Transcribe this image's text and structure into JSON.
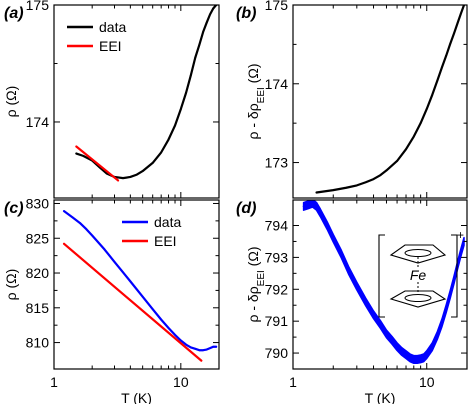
{
  "colors": {
    "data": "#0000ff",
    "data_black": "#000000",
    "eei": "#ff0000"
  },
  "chart_data": [
    {
      "id": "a",
      "panel_label": "(a)",
      "type": "line",
      "xscale": "log",
      "xlim": [
        1,
        20
      ],
      "ylim": [
        173.35,
        175
      ],
      "ylabel": "ρ (Ω)",
      "ylabel_parts": [
        {
          "text": "ρ (Ω)"
        }
      ],
      "yticks": [
        174,
        175
      ],
      "xticks": [
        1,
        10
      ],
      "xtick_labels": [],
      "legend": {
        "placement": "top-left"
      },
      "series": [
        {
          "name": "data",
          "color": "#000000",
          "kind": "line",
          "x": [
            1.5,
            1.7,
            2.0,
            2.3,
            2.6,
            3.0,
            3.5,
            4.0,
            4.5,
            5.0,
            6.0,
            7.0,
            8.0,
            9.0,
            10.0,
            11.0,
            12.0,
            13.0,
            14.0,
            15.0,
            16.0,
            17.0,
            18.0,
            19.0
          ],
          "y": [
            173.73,
            173.71,
            173.67,
            173.61,
            173.56,
            173.53,
            173.52,
            173.53,
            173.55,
            173.58,
            173.65,
            173.74,
            173.85,
            173.97,
            174.11,
            174.25,
            174.4,
            174.55,
            174.66,
            174.77,
            174.85,
            174.92,
            174.97,
            175.0
          ]
        },
        {
          "name": "EEI",
          "color": "#ff0000",
          "kind": "line",
          "x": [
            1.5,
            3.2
          ],
          "y": [
            173.79,
            173.5
          ]
        }
      ]
    },
    {
      "id": "b",
      "panel_label": "(b)",
      "type": "line",
      "xscale": "log",
      "xlim": [
        1,
        20
      ],
      "ylim": [
        172.55,
        175
      ],
      "ylabel": "ρ - δρEEI (Ω)",
      "ylabel_parts": [
        {
          "text": "ρ - δρ"
        },
        {
          "text": "EEI",
          "sub": true
        },
        {
          "text": " (Ω)"
        }
      ],
      "yticks": [
        173,
        174,
        175
      ],
      "xticks": [
        1,
        10
      ],
      "xtick_labels": [],
      "series": [
        {
          "name": "",
          "color": "#000000",
          "kind": "line",
          "x": [
            1.5,
            2.0,
            2.5,
            3.0,
            3.5,
            4.0,
            4.5,
            5.0,
            6.0,
            7.0,
            8.0,
            9.0,
            10.0,
            11.0,
            12.0,
            13.0,
            14.0,
            15.0,
            16.0,
            17.0,
            18.0,
            19.0
          ],
          "y": [
            172.62,
            172.65,
            172.68,
            172.71,
            172.75,
            172.79,
            172.84,
            172.9,
            173.02,
            173.17,
            173.33,
            173.5,
            173.68,
            173.86,
            174.04,
            174.21,
            174.36,
            174.51,
            174.64,
            174.77,
            174.89,
            175.0
          ]
        }
      ]
    },
    {
      "id": "c",
      "panel_label": "(c)",
      "type": "line",
      "xscale": "log",
      "xlim": [
        1,
        20
      ],
      "ylim": [
        806.2,
        830.5
      ],
      "ylabel": "ρ (Ω)",
      "ylabel_parts": [
        {
          "text": "ρ (Ω)"
        }
      ],
      "yticks": [
        810,
        815,
        820,
        825,
        830
      ],
      "xticks": [
        1,
        10
      ],
      "xtick_labels": [
        "1",
        "10"
      ],
      "xlabel": "T (K)",
      "legend": {
        "placement": "top-right"
      },
      "series": [
        {
          "name": "data",
          "color": "#0000ff",
          "kind": "line",
          "x": [
            1.2,
            1.4,
            1.6,
            1.8,
            2.0,
            2.5,
            3.0,
            3.5,
            4.0,
            5.0,
            6.0,
            7.0,
            8.0,
            9.0,
            10.0,
            11.0,
            12.0,
            13.0,
            14.0,
            15.0,
            16.0,
            17.0,
            18.0,
            19.0
          ],
          "y": [
            828.9,
            828.0,
            827.2,
            826.3,
            825.4,
            823.4,
            821.6,
            820.1,
            818.8,
            816.6,
            814.8,
            813.3,
            812.1,
            811.1,
            810.3,
            809.7,
            809.3,
            809.1,
            808.9,
            808.9,
            809.0,
            809.2,
            809.4,
            809.4
          ]
        },
        {
          "name": "EEI",
          "color": "#ff0000",
          "kind": "line",
          "x": [
            1.2,
            14.5
          ],
          "y": [
            824.2,
            807.4
          ]
        }
      ]
    },
    {
      "id": "d",
      "panel_label": "(d)",
      "type": "line",
      "xscale": "log",
      "xlim": [
        1,
        20
      ],
      "ylim": [
        789.5,
        794.8
      ],
      "ylabel": "ρ - δρEEI (Ω)",
      "ylabel_parts": [
        {
          "text": "ρ - δρ"
        },
        {
          "text": "EEI",
          "sub": true
        },
        {
          "text": " (Ω)"
        }
      ],
      "yticks": [
        790,
        791,
        792,
        793,
        794
      ],
      "xticks": [
        1,
        10
      ],
      "xtick_labels": [
        "1",
        "10"
      ],
      "xlabel": "T (K)",
      "inset": {
        "text": "Fe",
        "charge": "+"
      },
      "series": [
        {
          "name": "",
          "color": "#0000ff",
          "kind": "band",
          "x": [
            1.2,
            1.3,
            1.4,
            1.5,
            1.6,
            1.8,
            2.0,
            2.3,
            2.6,
            3.0,
            3.5,
            4.0,
            4.5,
            5.0,
            5.5,
            6.0,
            6.5,
            7.0,
            7.5,
            8.0,
            8.5,
            9.0,
            9.5,
            10.0,
            11.0,
            12.0,
            13.0,
            14.0,
            15.0,
            16.0,
            17.0,
            18.0,
            19.0
          ],
          "y": [
            794.6,
            794.65,
            794.7,
            794.6,
            794.4,
            794.0,
            793.6,
            793.1,
            792.6,
            792.1,
            791.6,
            791.2,
            790.9,
            790.6,
            790.4,
            790.2,
            790.05,
            789.95,
            789.85,
            789.8,
            789.8,
            789.82,
            789.85,
            789.95,
            790.2,
            790.55,
            790.95,
            791.4,
            791.85,
            792.3,
            792.75,
            793.15,
            793.5
          ],
          "spread": 0.12
        }
      ]
    }
  ]
}
